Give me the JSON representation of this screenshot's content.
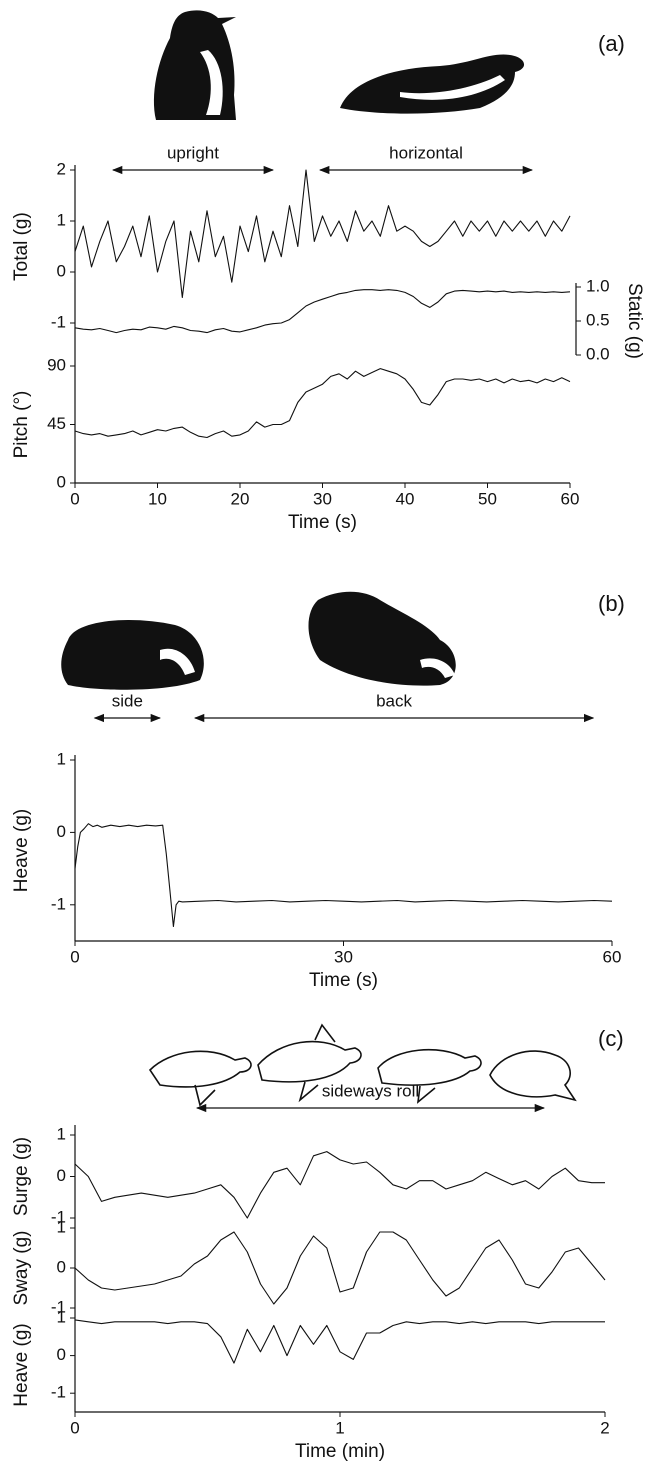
{
  "chart_data": [
    {
      "type": "line",
      "panel_label": "(a)",
      "xlabel": "Time (s)",
      "color": "#111",
      "xlim": [
        0,
        60
      ],
      "xticks": [
        0,
        10,
        20,
        30,
        40,
        50,
        60
      ],
      "x": [
        0,
        1,
        2,
        3,
        4,
        5,
        6,
        7,
        8,
        9,
        10,
        11,
        12,
        13,
        14,
        15,
        16,
        17,
        18,
        19,
        20,
        21,
        22,
        23,
        24,
        25,
        26,
        27,
        28,
        29,
        30,
        31,
        32,
        33,
        34,
        35,
        36,
        37,
        38,
        39,
        40,
        41,
        42,
        43,
        44,
        45,
        46,
        47,
        48,
        49,
        50,
        51,
        52,
        53,
        54,
        55,
        56,
        57,
        58,
        59,
        60
      ],
      "annotations": [
        {
          "text": "upright",
          "x": [
            4.6,
            24
          ]
        },
        {
          "text": "horizontal",
          "x": [
            29.7,
            55.4
          ]
        }
      ],
      "axes": [
        {
          "label": "Total (g)",
          "side": "left",
          "ylim": [
            -1,
            2
          ],
          "yticks": [
            -1,
            0,
            1,
            2
          ],
          "values": [
            0.4,
            0.9,
            0.1,
            0.6,
            1.0,
            0.2,
            0.5,
            0.9,
            0.3,
            1.1,
            0.0,
            0.6,
            1.0,
            -0.5,
            0.8,
            0.2,
            1.2,
            0.3,
            0.7,
            -0.2,
            0.9,
            0.4,
            1.1,
            0.2,
            0.8,
            0.3,
            1.3,
            0.5,
            2.0,
            0.6,
            1.1,
            0.7,
            1.0,
            0.6,
            1.2,
            0.8,
            1.0,
            0.7,
            1.3,
            0.8,
            0.9,
            0.8,
            0.6,
            0.5,
            0.6,
            0.8,
            1.0,
            0.7,
            1.0,
            0.8,
            1.0,
            0.7,
            1.0,
            0.8,
            1.0,
            0.8,
            1.0,
            0.7,
            1.0,
            0.8,
            1.1
          ]
        },
        {
          "label": "Static (g)",
          "side": "right",
          "ylim": [
            0,
            1
          ],
          "yticks": [
            {
              "value": 0,
              "label": "0.0"
            },
            {
              "value": 0.5,
              "label": "0.5"
            },
            {
              "value": 1,
              "label": "1.0"
            }
          ],
          "values": [
            0.4,
            0.38,
            0.37,
            0.39,
            0.36,
            0.33,
            0.36,
            0.38,
            0.37,
            0.41,
            0.4,
            0.38,
            0.42,
            0.4,
            0.36,
            0.35,
            0.33,
            0.37,
            0.39,
            0.35,
            0.34,
            0.37,
            0.4,
            0.44,
            0.46,
            0.47,
            0.52,
            0.62,
            0.72,
            0.78,
            0.82,
            0.86,
            0.9,
            0.92,
            0.95,
            0.96,
            0.96,
            0.95,
            0.96,
            0.95,
            0.92,
            0.86,
            0.76,
            0.7,
            0.78,
            0.9,
            0.94,
            0.95,
            0.94,
            0.93,
            0.94,
            0.93,
            0.94,
            0.92,
            0.93,
            0.92,
            0.93,
            0.92,
            0.93,
            0.92,
            0.93
          ]
        },
        {
          "label": "Pitch (°)",
          "side": "left",
          "ylim": [
            0,
            90
          ],
          "yticks": [
            0,
            45,
            90
          ],
          "values": [
            40,
            38,
            37,
            38,
            36,
            37,
            38,
            40,
            37,
            39,
            41,
            40,
            42,
            43,
            39,
            36,
            35,
            38,
            40,
            36,
            37,
            40,
            47,
            43,
            45,
            45,
            48,
            62,
            70,
            73,
            76,
            82,
            84,
            80,
            86,
            82,
            85,
            88,
            86,
            84,
            80,
            72,
            62,
            60,
            68,
            78,
            80,
            80,
            79,
            80,
            78,
            80,
            77,
            80,
            78,
            79,
            77,
            80,
            78,
            81,
            78
          ]
        }
      ]
    },
    {
      "type": "line",
      "panel_label": "(b)",
      "xlabel": "Time (s)",
      "color": "#111",
      "xlim": [
        0,
        60
      ],
      "xticks": [
        0,
        30,
        60
      ],
      "x": [
        0,
        0.3,
        0.6,
        1,
        1.5,
        2,
        2.5,
        3,
        4,
        5,
        6,
        7,
        8,
        9,
        9.8,
        10.2,
        10.6,
        11,
        11.3,
        11.6,
        12,
        14,
        16,
        18,
        20,
        22,
        24,
        26,
        28,
        30,
        32,
        34,
        36,
        38,
        40,
        42,
        44,
        46,
        48,
        50,
        52,
        54,
        56,
        58,
        60
      ],
      "annotations": [
        {
          "text": "side",
          "x": [
            2.2,
            9.5
          ]
        },
        {
          "text": "back",
          "x": [
            13.4,
            57.9
          ]
        }
      ],
      "axes": [
        {
          "label": "Heave (g)",
          "side": "left",
          "ylim": [
            -1.5,
            1
          ],
          "yticks": [
            -1,
            0,
            1
          ],
          "values": [
            -0.5,
            -0.2,
            0,
            0.05,
            0.12,
            0.08,
            0.1,
            0.07,
            0.1,
            0.08,
            0.1,
            0.08,
            0.1,
            0.09,
            0.1,
            -0.3,
            -0.8,
            -1.3,
            -1.0,
            -0.95,
            -0.96,
            -0.95,
            -0.94,
            -0.96,
            -0.95,
            -0.94,
            -0.96,
            -0.95,
            -0.94,
            -0.95,
            -0.96,
            -0.95,
            -0.94,
            -0.96,
            -0.95,
            -0.94,
            -0.95,
            -0.96,
            -0.95,
            -0.94,
            -0.95,
            -0.96,
            -0.95,
            -0.94,
            -0.95
          ]
        }
      ]
    },
    {
      "type": "line",
      "panel_label": "(c)",
      "xlabel": "Time (min)",
      "color": "#111",
      "xlim": [
        0,
        2
      ],
      "xticks": [
        0,
        1,
        2
      ],
      "x": [
        0,
        0.05,
        0.1,
        0.15,
        0.2,
        0.25,
        0.3,
        0.35,
        0.4,
        0.45,
        0.5,
        0.55,
        0.6,
        0.65,
        0.7,
        0.75,
        0.8,
        0.85,
        0.9,
        0.95,
        1,
        1.05,
        1.1,
        1.15,
        1.2,
        1.25,
        1.3,
        1.35,
        1.4,
        1.45,
        1.5,
        1.55,
        1.6,
        1.65,
        1.7,
        1.75,
        1.8,
        1.85,
        1.9,
        1.95,
        2
      ],
      "annotations": [
        {
          "text": "sideways roll",
          "x": [
            0.46,
            1.77
          ]
        }
      ],
      "axes": [
        {
          "label": "Surge (g)",
          "side": "left",
          "ylim": [
            -1,
            1
          ],
          "yticks": [
            -1,
            0,
            1
          ],
          "values": [
            0.3,
            0,
            -0.6,
            -0.5,
            -0.45,
            -0.4,
            -0.45,
            -0.5,
            -0.45,
            -0.4,
            -0.3,
            -0.2,
            -0.5,
            -1.0,
            -0.4,
            0.1,
            0.2,
            -0.2,
            0.5,
            0.6,
            0.4,
            0.3,
            0.35,
            0.1,
            -0.2,
            -0.3,
            -0.1,
            -0.1,
            -0.3,
            -0.2,
            -0.1,
            0.1,
            -0.05,
            -0.2,
            -0.1,
            -0.3,
            0.0,
            0.2,
            -0.1,
            -0.15,
            -0.15
          ]
        },
        {
          "label": "Sway (g)",
          "side": "left",
          "ylim": [
            -1,
            1
          ],
          "yticks": [
            -1,
            0,
            1
          ],
          "values": [
            0.0,
            -0.3,
            -0.5,
            -0.55,
            -0.5,
            -0.45,
            -0.4,
            -0.3,
            -0.2,
            0.1,
            0.3,
            0.7,
            0.9,
            0.4,
            -0.4,
            -0.9,
            -0.5,
            0.3,
            0.8,
            0.5,
            -0.6,
            -0.5,
            0.4,
            0.9,
            0.9,
            0.7,
            0.2,
            -0.3,
            -0.7,
            -0.5,
            0.0,
            0.5,
            0.7,
            0.2,
            -0.4,
            -0.5,
            -0.1,
            0.4,
            0.5,
            0.1,
            -0.3
          ]
        },
        {
          "label": "Heave (g)",
          "side": "left",
          "ylim": [
            -1.5,
            1
          ],
          "yticks": [
            -1,
            0,
            1
          ],
          "values": [
            0.95,
            0.9,
            0.85,
            0.9,
            0.9,
            0.9,
            0.9,
            0.85,
            0.9,
            0.9,
            0.85,
            0.5,
            -0.2,
            0.7,
            0.1,
            0.8,
            0.0,
            0.8,
            0.3,
            0.8,
            0.1,
            -0.1,
            0.6,
            0.6,
            0.8,
            0.9,
            0.85,
            0.9,
            0.9,
            0.85,
            0.9,
            0.85,
            0.9,
            0.9,
            0.9,
            0.85,
            0.9,
            0.9,
            0.9,
            0.9,
            0.9
          ]
        }
      ]
    }
  ]
}
